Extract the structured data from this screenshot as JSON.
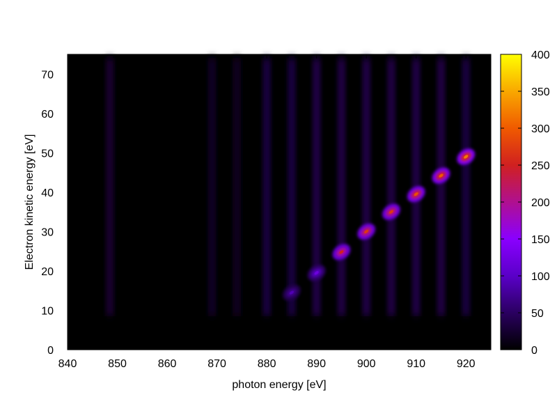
{
  "chart_data": {
    "type": "heatmap",
    "title": "",
    "xlabel": "photon energy [eV]",
    "ylabel": "Electron kinetic energy [eV]",
    "xlim": [
      840,
      925
    ],
    "ylim": [
      0,
      75
    ],
    "xticks": [
      840,
      850,
      860,
      870,
      880,
      890,
      900,
      910,
      920
    ],
    "yticks": [
      0,
      10,
      20,
      30,
      40,
      50,
      60,
      70
    ],
    "colorbar": {
      "range": [
        0,
        400
      ],
      "ticks": [
        0,
        50,
        100,
        150,
        200,
        250,
        300,
        350,
        400
      ],
      "colors": [
        "#000000",
        "#2a0060",
        "#5a00c8",
        "#8a00ff",
        "#b01090",
        "#d02020",
        "#f05a00",
        "#f9a800",
        "#ffff00"
      ]
    },
    "background_bands": [
      {
        "x": 848.5,
        "intensity": 22,
        "ymax": 74
      },
      {
        "x": 869.0,
        "intensity": 18,
        "ymax": 74
      },
      {
        "x": 874.0,
        "intensity": 16,
        "ymax": 74
      },
      {
        "x": 880.0,
        "intensity": 30,
        "ymax": 74
      },
      {
        "x": 885.0,
        "intensity": 30,
        "ymax": 74
      },
      {
        "x": 890.0,
        "intensity": 34,
        "ymax": 74
      },
      {
        "x": 895.0,
        "intensity": 32,
        "ymax": 74
      },
      {
        "x": 900.0,
        "intensity": 34,
        "ymax": 74
      },
      {
        "x": 905.0,
        "intensity": 32,
        "ymax": 74
      },
      {
        "x": 910.0,
        "intensity": 34,
        "ymax": 74
      },
      {
        "x": 915.0,
        "intensity": 32,
        "ymax": 74
      },
      {
        "x": 920.0,
        "intensity": 30,
        "ymax": 74
      }
    ],
    "peaks": [
      {
        "x": 885.0,
        "y": 14.5,
        "value": 90
      },
      {
        "x": 890.0,
        "y": 19.5,
        "value": 120
      },
      {
        "x": 895.0,
        "y": 24.8,
        "value": 250
      },
      {
        "x": 900.0,
        "y": 30.0,
        "value": 270
      },
      {
        "x": 905.0,
        "y": 35.0,
        "value": 270
      },
      {
        "x": 910.0,
        "y": 39.5,
        "value": 290
      },
      {
        "x": 915.0,
        "y": 44.2,
        "value": 300
      },
      {
        "x": 920.0,
        "y": 49.0,
        "value": 320
      }
    ],
    "floor_band": {
      "ymax": 8.5
    }
  }
}
